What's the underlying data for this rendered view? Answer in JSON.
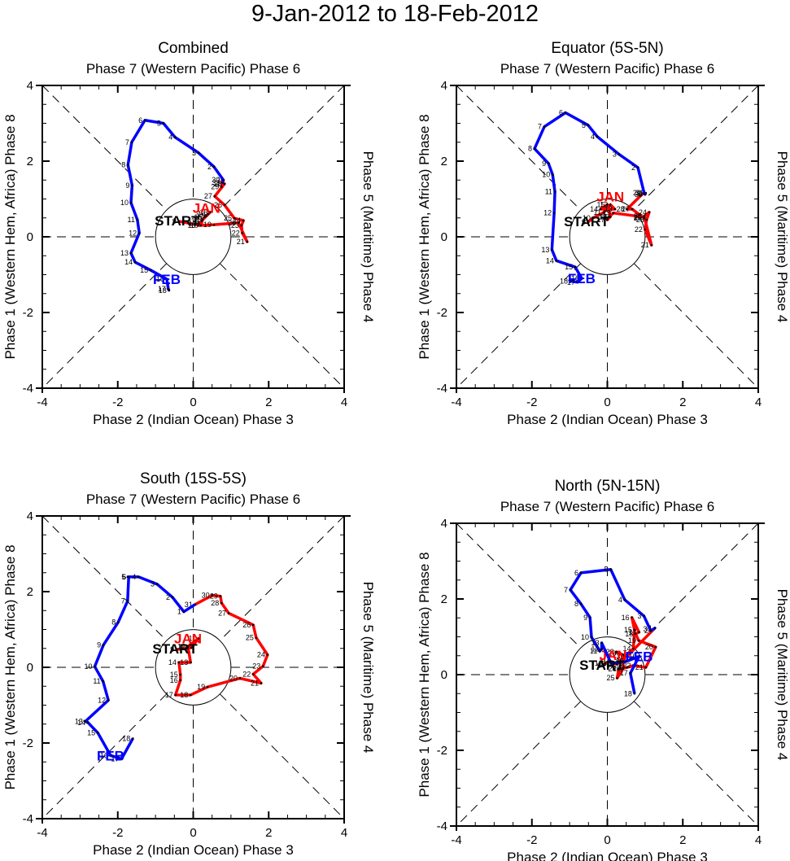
{
  "title": "9-Jan-2012 to 18-Feb-2012",
  "chart_data": [
    {
      "type": "line",
      "title": "Combined",
      "top_label": "Phase 7 (Western Pacific) Phase 6",
      "xlabel": "Phase 2 (Indian Ocean) Phase 3",
      "ylabel": "Phase 1 (Western Hem, Africa) Phase 8",
      "right_label": "Phase 5 (Maritime) Phase 4",
      "xlim": [
        -4,
        4
      ],
      "ylim": [
        -4,
        4
      ],
      "xticks": [
        -4,
        -2,
        0,
        2,
        4
      ],
      "yticks": [
        -4,
        -2,
        0,
        2,
        4
      ],
      "start_label": "START",
      "unit_circle_radius": 1,
      "series": [
        {
          "name": "JAN",
          "color": "#ff0000",
          "days": [
            9,
            10,
            11,
            12,
            13,
            14,
            15,
            16,
            17,
            18,
            19,
            20,
            21,
            22,
            23,
            24,
            25,
            26,
            27,
            28,
            29,
            30,
            31
          ],
          "x": [
            -0.38,
            0.2,
            0.25,
            0.35,
            0.45,
            0.4,
            0.3,
            0.22,
            0.15,
            0.13,
            0.55,
            1.2,
            1.43,
            1.3,
            1.28,
            1.33,
            1.09,
            0.83,
            0.57,
            0.83,
            0.75,
            0.77,
            0.78
          ],
          "y": [
            0.41,
            0.3,
            0.45,
            0.55,
            0.65,
            0.6,
            0.52,
            0.42,
            0.35,
            0.3,
            0.32,
            0.37,
            -0.13,
            0.1,
            0.3,
            0.43,
            0.49,
            0.84,
            1.07,
            1.4,
            1.32,
            1.51,
            1.43
          ]
        },
        {
          "name": "FEB",
          "color": "#0000ff",
          "days": [
            1,
            2,
            3,
            4,
            5,
            6,
            7,
            8,
            9,
            10,
            11,
            12,
            13,
            14,
            15,
            16,
            17,
            18
          ],
          "x": [
            0.8,
            0.55,
            0.14,
            -0.48,
            -0.79,
            -1.28,
            -1.63,
            -1.73,
            -1.62,
            -1.65,
            -1.48,
            -1.43,
            -1.65,
            -1.54,
            -1.13,
            -0.7,
            -0.66,
            -0.64
          ],
          "y": [
            1.5,
            1.85,
            2.22,
            2.63,
            3.0,
            3.08,
            2.5,
            1.9,
            1.36,
            0.9,
            0.45,
            0.1,
            -0.43,
            -0.67,
            -0.88,
            -1.12,
            -1.38,
            -1.42
          ]
        }
      ]
    },
    {
      "type": "line",
      "title": "Equator (5S-5N)",
      "top_label": "Phase 7 (Western Pacific) Phase 6",
      "xlabel": "Phase 2 (Indian Ocean) Phase 3",
      "ylabel": "Phase 1 (Western Hem, Africa) Phase 8",
      "right_label": "Phase 5 (Maritime) Phase 4",
      "xlim": [
        -4,
        4
      ],
      "ylim": [
        -4,
        4
      ],
      "xticks": [
        -4,
        -2,
        0,
        2,
        4
      ],
      "yticks": [
        -4,
        -2,
        0,
        2,
        4
      ],
      "start_label": "START",
      "unit_circle_radius": 1,
      "series": [
        {
          "name": "JAN",
          "color": "#ff0000",
          "days": [
            9,
            10,
            11,
            12,
            13,
            14,
            15,
            16,
            17,
            18,
            19,
            20,
            21,
            22,
            23,
            24,
            25,
            26,
            27,
            28,
            29,
            30,
            31
          ],
          "x": [
            -0.51,
            -0.38,
            -0.1,
            0.08,
            0.2,
            -0.18,
            0.0,
            0.08,
            0.0,
            0.05,
            0.16,
            0.98,
            1.17,
            1.0,
            1.04,
            1.11,
            0.98,
            0.98,
            0.66,
            0.52,
            0.96,
            1.0,
            1.02
          ],
          "y": [
            0.39,
            0.5,
            0.64,
            0.85,
            0.73,
            0.73,
            0.85,
            0.53,
            0.45,
            0.53,
            0.63,
            0.52,
            -0.22,
            0.19,
            0.45,
            0.65,
            0.55,
            0.49,
            0.73,
            0.73,
            1.16,
            1.12,
            1.16
          ]
        },
        {
          "name": "FEB",
          "color": "#0000ff",
          "days": [
            1,
            2,
            3,
            4,
            5,
            6,
            7,
            8,
            9,
            10,
            11,
            12,
            13,
            14,
            15,
            16,
            17,
            18
          ],
          "x": [
            0.98,
            0.81,
            0.31,
            -0.27,
            -0.51,
            -1.11,
            -1.67,
            -1.93,
            -1.56,
            -1.45,
            -1.39,
            -1.41,
            -1.47,
            -1.35,
            -0.85,
            -0.68,
            -0.79,
            -0.98
          ],
          "y": [
            1.14,
            1.83,
            2.18,
            2.65,
            2.95,
            3.28,
            2.91,
            2.33,
            1.94,
            1.64,
            1.19,
            0.63,
            -0.34,
            -0.63,
            -0.8,
            -1.1,
            -1.2,
            -1.17
          ]
        }
      ]
    },
    {
      "type": "line",
      "title": "South (15S-5S)",
      "top_label": "Phase 7 (Western Pacific) Phase 6",
      "xlabel": "Phase 2 (Indian Ocean) Phase 3",
      "ylabel": "Phase 1 (Western Hem, Africa) Phase 8",
      "right_label": "Phase 5 (Maritime) Phase 4",
      "xlim": [
        -4,
        4
      ],
      "ylim": [
        -4,
        4
      ],
      "xticks": [
        -4,
        -2,
        0,
        2,
        4
      ],
      "yticks": [
        -4,
        -2,
        0,
        2,
        4
      ],
      "start_label": "START",
      "unit_circle_radius": 1,
      "series": [
        {
          "name": "JAN",
          "color": "#ff0000",
          "days": [
            9,
            10,
            11,
            12,
            13,
            14,
            15,
            16,
            17,
            18,
            19,
            20,
            21,
            22,
            23,
            24,
            25,
            26,
            27,
            28,
            29,
            30,
            31
          ],
          "x": [
            -0.44,
            -0.05,
            0.14,
            -0.14,
            -0.07,
            -0.38,
            -0.34,
            -0.34,
            -0.47,
            -0.07,
            0.38,
            1.24,
            1.8,
            1.59,
            1.85,
            1.97,
            1.67,
            1.59,
            0.94,
            0.75,
            0.72,
            0.5,
            0.05
          ],
          "y": [
            0.47,
            0.52,
            0.76,
            0.55,
            0.13,
            0.13,
            -0.19,
            -0.34,
            -0.73,
            -0.73,
            -0.52,
            -0.29,
            -0.42,
            -0.18,
            0.03,
            0.33,
            0.78,
            1.12,
            1.43,
            1.7,
            1.88,
            1.9,
            1.66
          ]
        },
        {
          "name": "FEB",
          "color": "#0000ff",
          "days": [
            1,
            2,
            3,
            4,
            5,
            6,
            7,
            8,
            9,
            10,
            11,
            12,
            13,
            14,
            15,
            16,
            17,
            18
          ],
          "x": [
            -0.25,
            -0.55,
            -0.96,
            -1.45,
            -1.73,
            -1.71,
            -1.74,
            -1.99,
            -2.38,
            -2.61,
            -2.39,
            -2.25,
            -2.86,
            -2.79,
            -2.53,
            -2.19,
            -1.9,
            -1.6
          ],
          "y": [
            1.47,
            1.85,
            2.2,
            2.39,
            2.39,
            2.39,
            1.75,
            1.19,
            0.59,
            0.02,
            -0.37,
            -0.87,
            -1.43,
            -1.46,
            -1.73,
            -2.33,
            -2.42,
            -1.88
          ]
        }
      ]
    },
    {
      "type": "line",
      "title": "North (5N-15N)",
      "top_label": "Phase 7 (Western Pacific) Phase 6",
      "xlabel": "Phase 2 (Indian Ocean) Phase 3",
      "ylabel": "Phase 1 (Western Hem, Africa) Phase 8",
      "right_label": "Phase 5 (Maritime) Phase 4",
      "xlim": [
        -4,
        4
      ],
      "ylim": [
        -4,
        4
      ],
      "xticks": [
        -4,
        -2,
        0,
        2,
        4
      ],
      "yticks": [
        -4,
        -2,
        0,
        2,
        4
      ],
      "start_label": "START",
      "unit_circle_radius": 1,
      "series": [
        {
          "name": "JAN",
          "color": "#ff0000",
          "days": [
            9,
            10,
            11,
            12,
            13,
            14,
            15,
            16,
            17,
            18,
            19,
            20,
            21,
            22,
            23,
            24,
            25,
            26,
            27,
            28,
            29,
            30,
            31
          ],
          "x": [
            -0.1,
            -0.06,
            0.05,
            0.15,
            0.25,
            0.69,
            0.72,
            0.65,
            0.84,
            0.75,
            0.83,
            1.28,
            1.02,
            0.69,
            0.52,
            0.3,
            0.26,
            0.42,
            0.42,
            0.24,
            0.3,
            0.52,
            1.23
          ],
          "y": [
            0.24,
            0.3,
            0.35,
            0.3,
            0.28,
            0.69,
            1.18,
            1.51,
            1.12,
            1.08,
            0.9,
            0.73,
            0.19,
            0.24,
            0.19,
            0.15,
            -0.09,
            0.16,
            0.52,
            0.6,
            0.56,
            0.48,
            1.2
          ]
        },
        {
          "name": "FEB",
          "color": "#0000ff",
          "days": [
            1,
            2,
            3,
            4,
            5,
            6,
            7,
            8,
            9,
            10,
            11,
            12,
            13,
            14,
            15,
            16,
            17,
            18
          ],
          "x": [
            1.26,
            1.15,
            0.97,
            0.46,
            0.09,
            -0.7,
            -0.98,
            -0.7,
            -0.46,
            -0.42,
            -0.2,
            -0.15,
            -0.15,
            0.1,
            0.5,
            0.84,
            0.61,
            0.72
          ],
          "y": [
            1.23,
            1.16,
            1.55,
            1.98,
            2.78,
            2.69,
            2.24,
            1.87,
            1.51,
            0.99,
            0.62,
            0.68,
            0.84,
            0.3,
            0.35,
            0.48,
            0.04,
            -0.5
          ]
        }
      ]
    }
  ]
}
